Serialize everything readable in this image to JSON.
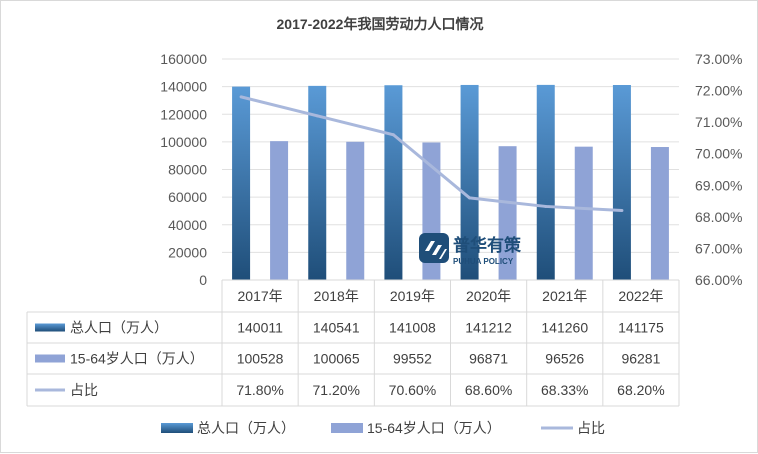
{
  "chart_data": {
    "type": "bar",
    "title": "2017-2022年我国劳动力人口情况",
    "categories": [
      "2017年",
      "2018年",
      "2019年",
      "2020年",
      "2021年",
      "2022年"
    ],
    "series": [
      {
        "name": "总人口（万人）",
        "kind": "bar",
        "axis": "left",
        "color": "#2f6fa8",
        "values": [
          140011,
          140541,
          141008,
          141212,
          141260,
          141175
        ],
        "labels": [
          "140011",
          "140541",
          "141008",
          "141212",
          "141260",
          "141175"
        ]
      },
      {
        "name": "15-64岁人口（万人）",
        "kind": "bar",
        "axis": "left",
        "color": "#8fa3d6",
        "values": [
          100528,
          100065,
          99552,
          96871,
          96526,
          96281
        ],
        "labels": [
          "100528",
          "100065",
          "99552",
          "96871",
          "96526",
          "96281"
        ]
      },
      {
        "name": "占比",
        "kind": "line",
        "axis": "right",
        "color": "#a9b8dc",
        "values": [
          71.8,
          71.2,
          70.6,
          68.6,
          68.33,
          68.2
        ],
        "labels": [
          "71.80%",
          "71.20%",
          "70.60%",
          "68.60%",
          "68.33%",
          "68.20%"
        ]
      }
    ],
    "left_axis": {
      "min": 0,
      "max": 160000,
      "step": 20000,
      "tick_labels": [
        "0",
        "20000",
        "40000",
        "60000",
        "80000",
        "100000",
        "120000",
        "140000",
        "160000"
      ]
    },
    "right_axis": {
      "min": 66,
      "max": 73,
      "step": 1,
      "tick_labels": [
        "66.00%",
        "67.00%",
        "68.00%",
        "69.00%",
        "70.00%",
        "71.00%",
        "72.00%",
        "73.00%"
      ]
    },
    "data_table": true,
    "legend_position": "bottom",
    "watermark": {
      "name_cn": "普华有策",
      "name_en": "PUHUA POLICY"
    }
  }
}
